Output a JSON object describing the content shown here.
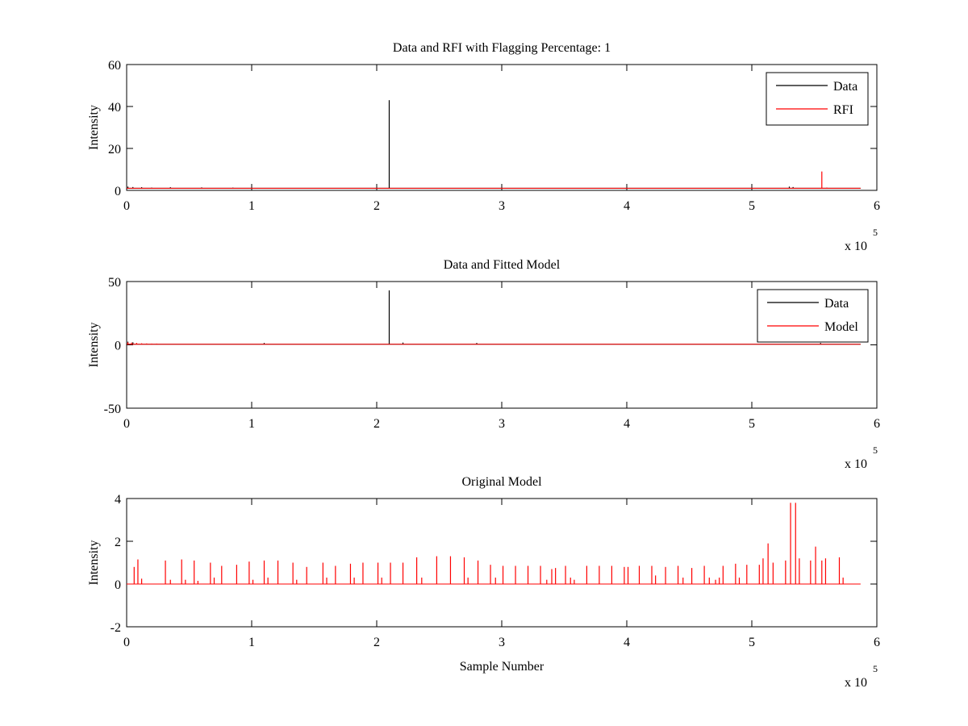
{
  "colors": {
    "data": "#000000",
    "rfi": "#ff0000",
    "model": "#ff0000",
    "axes": "#000000",
    "background": "#ffffff"
  },
  "chart_data": [
    {
      "type": "line",
      "title": "Data and RFI with Flagging Percentage: 1",
      "xlabel": "",
      "ylabel": "Intensity",
      "xlim": [
        0,
        600000
      ],
      "ylim": [
        0,
        60
      ],
      "x_multiplier_label": "x 10",
      "x_multiplier_exponent": "5",
      "xticks": [
        0,
        1,
        2,
        3,
        4,
        5,
        6
      ],
      "yticks": [
        0,
        20,
        40,
        60
      ],
      "legend": {
        "placement": "top-right",
        "entries": [
          "Data",
          "RFI"
        ]
      },
      "baseline": 1,
      "x_end": 587000,
      "series": [
        {
          "name": "Data",
          "color": "#000000",
          "spikes": [
            [
              210000,
              43
            ],
            [
              1000,
              1.8
            ],
            [
              5000,
              1.6
            ],
            [
              12000,
              1.5
            ],
            [
              20000,
              1.3
            ],
            [
              35000,
              1.5
            ],
            [
              60000,
              1.4
            ],
            [
              85000,
              1.3
            ],
            [
              530000,
              1.8
            ],
            [
              533000,
              1.6
            ]
          ]
        },
        {
          "name": "RFI",
          "color": "#ff0000",
          "spikes": [
            [
              556000,
              9
            ],
            [
              560000,
              1.3
            ]
          ]
        }
      ]
    },
    {
      "type": "line",
      "title": "Data and Fitted Model",
      "xlabel": "",
      "ylabel": "Intensity",
      "xlim": [
        0,
        600000
      ],
      "ylim": [
        -50,
        50
      ],
      "x_multiplier_label": "x 10",
      "x_multiplier_exponent": "5",
      "xticks": [
        0,
        1,
        2,
        3,
        4,
        5,
        6
      ],
      "yticks": [
        -50,
        0,
        50
      ],
      "legend": {
        "placement": "top-right",
        "entries": [
          "Data",
          "Model"
        ]
      },
      "baseline": 0.5,
      "x_end": 587000,
      "series": [
        {
          "name": "Data",
          "color": "#000000",
          "spikes": [
            [
              210000,
              43
            ],
            [
              1000,
              2.5
            ],
            [
              5000,
              2
            ],
            [
              110000,
              1.5
            ],
            [
              221000,
              1.8
            ],
            [
              280000,
              1.5
            ],
            [
              555000,
              1.5
            ]
          ]
        },
        {
          "name": "Model",
          "color": "#ff0000",
          "spikes": [
            [
              1000,
              2
            ],
            [
              4000,
              1.8
            ],
            [
              8000,
              1.5
            ],
            [
              12000,
              1.2
            ],
            [
              16000,
              1.1
            ],
            [
              20000,
              1.0
            ],
            [
              24000,
              1.0
            ]
          ]
        }
      ]
    },
    {
      "type": "line",
      "title": "Original Model",
      "xlabel": "Sample Number",
      "ylabel": "Intensity",
      "xlim": [
        0,
        600000
      ],
      "ylim": [
        -2,
        4
      ],
      "x_multiplier_label": "x 10",
      "x_multiplier_exponent": "5",
      "xticks": [
        0,
        1,
        2,
        3,
        4,
        5,
        6
      ],
      "yticks": [
        -2,
        0,
        2,
        4
      ],
      "baseline": 0,
      "x_end": 587000,
      "series": [
        {
          "name": "",
          "color": "#ff0000",
          "spikes": [
            [
              6000,
              0.8
            ],
            [
              9000,
              1.15
            ],
            [
              12000,
              0.25
            ],
            [
              31000,
              1.1
            ],
            [
              35000,
              0.2
            ],
            [
              44000,
              1.15
            ],
            [
              47000,
              0.2
            ],
            [
              54000,
              1.1
            ],
            [
              57000,
              0.15
            ],
            [
              67000,
              1.0
            ],
            [
              70000,
              0.3
            ],
            [
              76000,
              0.85
            ],
            [
              88000,
              0.9
            ],
            [
              98000,
              1.05
            ],
            [
              101000,
              0.2
            ],
            [
              110000,
              1.1
            ],
            [
              113000,
              0.3
            ],
            [
              121000,
              1.1
            ],
            [
              133000,
              1.0
            ],
            [
              136000,
              0.2
            ],
            [
              144000,
              0.8
            ],
            [
              157000,
              1.0
            ],
            [
              160000,
              0.3
            ],
            [
              167000,
              0.85
            ],
            [
              179000,
              0.95
            ],
            [
              182000,
              0.3
            ],
            [
              189000,
              1.0
            ],
            [
              201000,
              1.0
            ],
            [
              204000,
              0.3
            ],
            [
              211000,
              1.0
            ],
            [
              221000,
              1.0
            ],
            [
              232000,
              1.25
            ],
            [
              236000,
              0.3
            ],
            [
              248000,
              1.3
            ],
            [
              259000,
              1.3
            ],
            [
              270000,
              1.25
            ],
            [
              273000,
              0.3
            ],
            [
              281000,
              1.1
            ],
            [
              291000,
              0.9
            ],
            [
              295000,
              0.3
            ],
            [
              301000,
              0.85
            ],
            [
              311000,
              0.85
            ],
            [
              321000,
              0.85
            ],
            [
              331000,
              0.85
            ],
            [
              336000,
              0.2
            ],
            [
              340000,
              0.7
            ],
            [
              343000,
              0.75
            ],
            [
              351000,
              0.85
            ],
            [
              355000,
              0.3
            ],
            [
              358000,
              0.2
            ],
            [
              368000,
              0.85
            ],
            [
              378000,
              0.85
            ],
            [
              388000,
              0.85
            ],
            [
              398000,
              0.8
            ],
            [
              401000,
              0.8
            ],
            [
              410000,
              0.85
            ],
            [
              420000,
              0.85
            ],
            [
              423000,
              0.4
            ],
            [
              431000,
              0.8
            ],
            [
              441000,
              0.85
            ],
            [
              445000,
              0.3
            ],
            [
              452000,
              0.75
            ],
            [
              462000,
              0.85
            ],
            [
              466000,
              0.3
            ],
            [
              471000,
              0.2
            ],
            [
              474000,
              0.3
            ],
            [
              477000,
              0.85
            ],
            [
              487000,
              0.95
            ],
            [
              490000,
              0.3
            ],
            [
              496000,
              0.9
            ],
            [
              506000,
              0.9
            ],
            [
              509000,
              1.2
            ],
            [
              513000,
              1.9
            ],
            [
              517000,
              1.0
            ],
            [
              527000,
              1.1
            ],
            [
              531000,
              3.8
            ],
            [
              535000,
              3.8
            ],
            [
              538000,
              1.2
            ],
            [
              547000,
              1.1
            ],
            [
              551000,
              1.75
            ],
            [
              556000,
              1.1
            ],
            [
              559000,
              1.2
            ],
            [
              570000,
              1.25
            ],
            [
              573000,
              0.3
            ]
          ]
        }
      ]
    }
  ]
}
